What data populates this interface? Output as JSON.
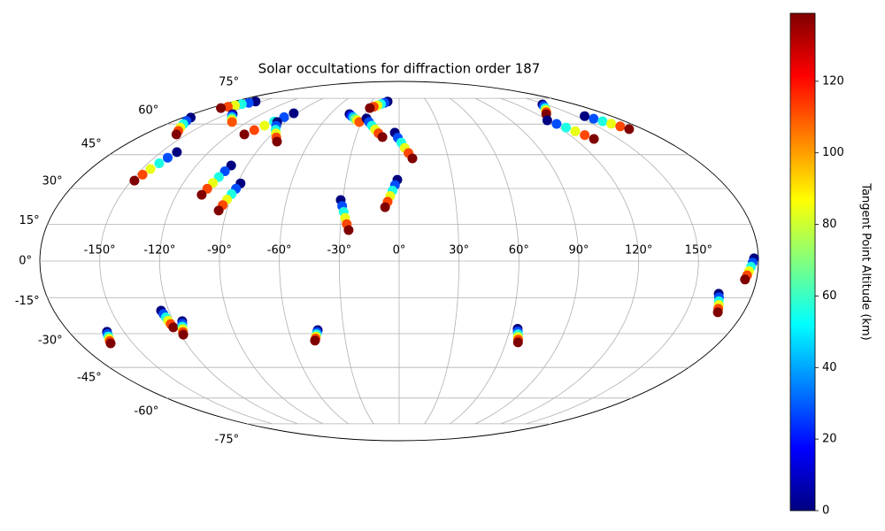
{
  "chart_data": {
    "type": "scatter",
    "projection": "mollweide",
    "title": "Solar occultations for diffraction order 187",
    "xlim": [
      -180,
      180
    ],
    "ylim": [
      -90,
      90
    ],
    "grid": true,
    "colormap": "jet",
    "xticks": [
      {
        "value": -150,
        "label": "-150°"
      },
      {
        "value": -120,
        "label": "-120°"
      },
      {
        "value": -90,
        "label": "-90°"
      },
      {
        "value": -60,
        "label": "-60°"
      },
      {
        "value": -30,
        "label": "-30°"
      },
      {
        "value": 0,
        "label": "0°"
      },
      {
        "value": 30,
        "label": "30°"
      },
      {
        "value": 60,
        "label": "60°"
      },
      {
        "value": 90,
        "label": "90°"
      },
      {
        "value": 120,
        "label": "120°"
      },
      {
        "value": 150,
        "label": "150°"
      }
    ],
    "yticks": [
      {
        "value": -75,
        "label": "-75°"
      },
      {
        "value": -60,
        "label": "-60°"
      },
      {
        "value": -45,
        "label": "-45°"
      },
      {
        "value": -30,
        "label": "-30°"
      },
      {
        "value": -15,
        "label": "-15°"
      },
      {
        "value": 0,
        "label": "0°"
      },
      {
        "value": 15,
        "label": "15°"
      },
      {
        "value": 30,
        "label": "30°"
      },
      {
        "value": 45,
        "label": "45°"
      },
      {
        "value": 60,
        "label": "60°"
      },
      {
        "value": 75,
        "label": "75°"
      }
    ],
    "colorbar": {
      "label": "Tangent Point Altitude (km)",
      "lim": [
        0,
        139
      ],
      "ticks": [
        0,
        20,
        40,
        60,
        80,
        100,
        120
      ]
    },
    "tracks": [
      {
        "lon": [
          -156.4,
          -159.2,
          -162.0,
          -164.8,
          -167.6,
          -170.4
        ],
        "lat": [
          72.9,
          72.1,
          71.3,
          70.5,
          69.7,
          68.9
        ],
        "alt": [
          0,
          28,
          56,
          84,
          112,
          139
        ]
      },
      {
        "lon": [
          -144.9,
          -142.4,
          -139.8,
          -137.3,
          -134.7,
          -132.2
        ],
        "lat": [
          65.4,
          64.5,
          63.7,
          62.8,
          62.0,
          61.1
        ],
        "alt": [
          0,
          22,
          44,
          66,
          88,
          110
        ]
      },
      {
        "lon": [
          -173.5,
          -170.3,
          -167.0,
          -163.8,
          -160.5,
          -157.3
        ],
        "lat": [
          63.5,
          61.7,
          60.0,
          58.2,
          56.5,
          54.7
        ],
        "alt": [
          0,
          28,
          56,
          84,
          112,
          139
        ]
      },
      {
        "lon": [
          -140.0,
          -141.7,
          -143.3,
          -145.0,
          -146.6,
          -148.3
        ],
        "lat": [
          46.2,
          43.6,
          41.1,
          38.5,
          36.0,
          33.4
        ],
        "alt": [
          0,
          28,
          56,
          84,
          112,
          139
        ]
      },
      {
        "lon": [
          -99.4,
          -100.8,
          -102.2,
          -103.6,
          -105.0,
          -106.4
        ],
        "lat": [
          40.1,
          37.5,
          35.0,
          32.4,
          29.9,
          27.3
        ],
        "alt": [
          0,
          28,
          56,
          84,
          112,
          139
        ]
      },
      {
        "lon": [
          -88.1,
          -89.3,
          -90.5,
          -91.8,
          -93.0,
          -94.2
        ],
        "lat": [
          32.2,
          29.9,
          27.6,
          25.3,
          23.0,
          20.7
        ],
        "alt": [
          0,
          28,
          56,
          84,
          112,
          139
        ]
      },
      {
        "lon": [
          -92.9,
          -96.2,
          -99.5,
          -102.7,
          -106.0,
          -109.3
        ],
        "lat": [
          65.9,
          63.7,
          61.4,
          59.2,
          56.9,
          54.7
        ],
        "alt": [
          0,
          28,
          56,
          84,
          112,
          139
        ]
      },
      {
        "lon": [
          -96.5,
          -93.6,
          -90.7,
          -87.7,
          -84.8,
          -81.9
        ],
        "lat": [
          61.1,
          59.1,
          57.1,
          55.2,
          53.2,
          51.2
        ],
        "alt": [
          0,
          28,
          56,
          84,
          112,
          139
        ]
      },
      {
        "lon": [
          -43.2,
          -40.9,
          -38.5,
          -36.2,
          -33.8,
          -31.5
        ],
        "lat": [
          65.4,
          64.5,
          63.7,
          62.8,
          62.0,
          61.1
        ],
        "alt": [
          0,
          22,
          44,
          66,
          88,
          110
        ]
      },
      {
        "lon": [
          -12.5,
          -15.6,
          -18.7,
          -21.8,
          -24.9,
          -28.0
        ],
        "lat": [
          72.9,
          72.1,
          71.3,
          70.5,
          69.7,
          68.9
        ],
        "alt": [
          0,
          28,
          56,
          84,
          112,
          139
        ]
      },
      {
        "lon": [
          -26.9,
          -23.8,
          -20.8,
          -17.7,
          -14.7,
          -11.6
        ],
        "lat": [
          63.0,
          61.1,
          59.2,
          57.2,
          55.3,
          53.4
        ],
        "alt": [
          0,
          28,
          56,
          84,
          112,
          139
        ]
      },
      {
        "lon": [
          -3.1,
          -0.9,
          1.4,
          3.6,
          5.9,
          8.1
        ],
        "lat": [
          55.6,
          53.1,
          50.7,
          48.2,
          45.8,
          43.3
        ],
        "alt": [
          0,
          28,
          56,
          84,
          112,
          139
        ]
      },
      {
        "lon": [
          -1.0,
          -2.3,
          -3.6,
          -4.8,
          -6.1,
          -7.4
        ],
        "lat": [
          33.8,
          31.5,
          29.1,
          26.8,
          24.4,
          22.1
        ],
        "alt": [
          0,
          28,
          56,
          84,
          112,
          139
        ]
      },
      {
        "lon": [
          -31.1,
          -30.0,
          -28.9,
          -27.9,
          -26.8,
          -25.7
        ],
        "lat": [
          25.1,
          22.6,
          20.1,
          17.6,
          15.1,
          12.6
        ],
        "alt": [
          0,
          28,
          56,
          84,
          112,
          139
        ]
      },
      {
        "lon": [
          146.6,
          142.9,
          139.2,
          135.4,
          131.7,
          128.0
        ],
        "lat": [
          71.1,
          70.0,
          68.8,
          67.7,
          66.5,
          65.4
        ],
        "alt": [
          0,
          28,
          56,
          84,
          112,
          139
        ]
      },
      {
        "lon": [
          119.4,
          122.1,
          124.9,
          127.6,
          130.4,
          133.1
        ],
        "lat": [
          62.0,
          60.1,
          58.2,
          56.3,
          54.4,
          52.5
        ],
        "alt": [
          0,
          28,
          56,
          84,
          112,
          139
        ]
      },
      {
        "lon": [
          157.3,
          159.8,
          162.3,
          164.8,
          167.3,
          169.8
        ],
        "lat": [
          64.3,
          62.9,
          61.5,
          60.2,
          58.8,
          57.4
        ],
        "alt": [
          0,
          28,
          56,
          84,
          112,
          139
        ]
      },
      {
        "lon": [
          177.8,
          177.1,
          176.4,
          175.6,
          174.9,
          174.2
        ],
        "lat": [
          1.1,
          -0.6,
          -2.3,
          -4.1,
          -5.8,
          -7.5
        ],
        "alt": [
          0,
          28,
          56,
          84,
          112,
          139
        ]
      },
      {
        "lon": [
          162.8,
          163.6,
          164.3,
          165.1,
          165.8,
          166.6
        ],
        "lat": [
          -13.3,
          -14.8,
          -16.4,
          -17.9,
          -19.5,
          -21.0
        ],
        "alt": [
          0,
          28,
          56,
          84,
          112,
          139
        ]
      },
      {
        "lon": [
          -124.1,
          -123.6,
          -123.1,
          -122.7,
          -122.2,
          -121.7
        ],
        "lat": [
          -20.3,
          -21.7,
          -23.1,
          -24.5,
          -25.9,
          -27.3
        ],
        "alt": [
          0,
          28,
          56,
          84,
          112,
          139
        ]
      },
      {
        "lon": [
          -115.3,
          -115.9,
          -116.6,
          -117.2,
          -117.9,
          -118.5
        ],
        "lat": [
          -24.7,
          -25.8,
          -27.0,
          -28.1,
          -29.3,
          -30.4
        ],
        "alt": [
          0,
          28,
          56,
          84,
          112,
          139
        ]
      },
      {
        "lon": [
          -159.2,
          -159.9,
          -160.5,
          -161.2,
          -161.9,
          -162.6
        ],
        "lat": [
          -29.2,
          -30.2,
          -31.2,
          -32.2,
          -33.2,
          -34.2
        ],
        "alt": [
          0,
          28,
          56,
          84,
          112,
          139
        ]
      },
      {
        "lon": [
          -44.2,
          -44.8,
          -45.3,
          -45.9,
          -46.4,
          -47.0
        ],
        "lat": [
          -28.5,
          -29.4,
          -30.3,
          -31.2,
          -32.1,
          -33.0
        ],
        "alt": [
          0,
          28,
          56,
          84,
          112,
          139
        ]
      },
      {
        "lon": [
          64.1,
          64.6,
          65.2,
          65.7,
          66.3,
          66.8
        ],
        "lat": [
          -27.9,
          -29.1,
          -30.3,
          -31.4,
          -32.6,
          -33.8
        ],
        "alt": [
          0,
          28,
          56,
          84,
          112,
          139
        ]
      }
    ]
  }
}
